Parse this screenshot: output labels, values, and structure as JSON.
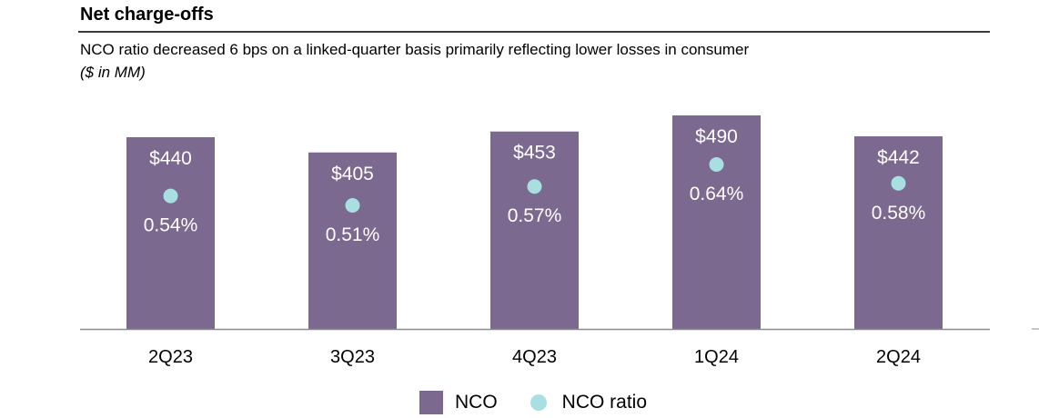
{
  "header": {
    "title": "Net charge-offs",
    "subtitle": "NCO ratio decreased 6 bps on a linked-quarter basis primarily reflecting lower losses in consumer",
    "units": "($ in MM)"
  },
  "colors": {
    "bar": "#7b6990",
    "dot": "#a9dfe0",
    "axis": "#8c8c8c",
    "label_on_bar": "#ffffff"
  },
  "chart_data": {
    "type": "bar",
    "categories": [
      "2Q23",
      "3Q23",
      "4Q23",
      "1Q24",
      "2Q24"
    ],
    "series": [
      {
        "name": "NCO",
        "values": [
          440,
          405,
          453,
          490,
          442
        ],
        "labels": [
          "$440",
          "$405",
          "$453",
          "$490",
          "$442"
        ]
      },
      {
        "name": "NCO ratio",
        "values": [
          0.54,
          0.51,
          0.57,
          0.64,
          0.58
        ],
        "labels": [
          "0.54%",
          "0.51%",
          "0.57%",
          "0.64%",
          "0.58%"
        ]
      }
    ],
    "ylim": [
      0,
      490
    ],
    "ratio_lim": [
      0.0,
      0.64
    ],
    "legend": {
      "position": "bottom-center",
      "items": [
        "NCO",
        "NCO ratio"
      ]
    }
  }
}
